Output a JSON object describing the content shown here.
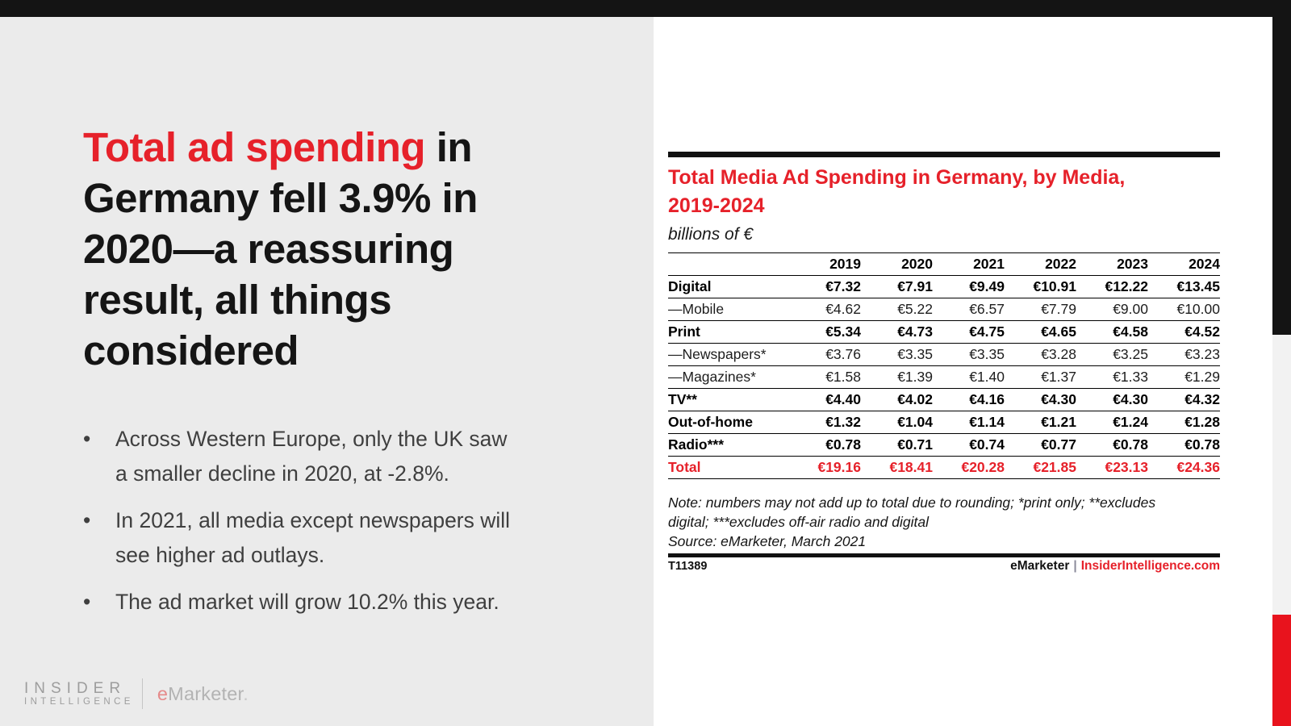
{
  "colors": {
    "accent_red": "#e6212a",
    "strip_red": "#e8131d",
    "topbar_black": "#141414",
    "panel_gray": "#ebebeb",
    "strip_gray": "#f2f2f2",
    "bullet_gray": "#3f3f3f",
    "logo_gray": "#9d9d9d",
    "logo_light_gray": "#b3b3b3",
    "logo_red": "#e58a8a"
  },
  "left_panel": {
    "headline": {
      "highlight": "Total ad spending",
      "rest": " in\nGermany fell 3.9% in\n2020—a reassuring\nresult, all things\nconsidered"
    },
    "bullets": [
      "Across Western Europe, only the UK saw\na smaller decline in 2020, at -2.8%.",
      "In 2021, all media except newspapers will\nsee higher ad outlays.",
      "The ad market will grow 10.2% this year."
    ],
    "logo": {
      "insider_line1": "INSIDER",
      "insider_line2": "INTELLIGENCE",
      "emarketer_e": "e",
      "emarketer_rest": "Marketer",
      "emarketer_dot": "."
    }
  },
  "chart_card": {
    "title_line1": "Total Media Ad Spending in Germany, by Media,",
    "title_line2": "2019-2024",
    "subtitle": "billions of €",
    "note_line1": "Note: numbers may not add up to total due to rounding; *print only; **excludes",
    "note_line2": "digital; ***excludes off-air radio and digital",
    "source": "Source: eMarketer, March 2021",
    "chart_id": "T11389",
    "footer_brand": "eMarketer",
    "footer_separator": "|",
    "footer_site": "InsiderIntelligence.com"
  },
  "chart_data": {
    "type": "table",
    "title": "Total Media Ad Spending in Germany, by Media, 2019-2024",
    "unit": "billions of €",
    "currency_prefix": "€",
    "categories": [
      "2019",
      "2020",
      "2021",
      "2022",
      "2023",
      "2024"
    ],
    "series": [
      {
        "name": "Digital",
        "style": "bold",
        "values": [
          7.32,
          7.91,
          9.49,
          10.91,
          12.22,
          13.45
        ]
      },
      {
        "name": "—Mobile",
        "style": "sub",
        "values": [
          4.62,
          5.22,
          6.57,
          7.79,
          9.0,
          10.0
        ]
      },
      {
        "name": "Print",
        "style": "bold",
        "values": [
          5.34,
          4.73,
          4.75,
          4.65,
          4.58,
          4.52
        ]
      },
      {
        "name": "—Newspapers*",
        "style": "sub",
        "values": [
          3.76,
          3.35,
          3.35,
          3.28,
          3.25,
          3.23
        ]
      },
      {
        "name": "—Magazines*",
        "style": "sub",
        "values": [
          1.58,
          1.39,
          1.4,
          1.37,
          1.33,
          1.29
        ]
      },
      {
        "name": "TV**",
        "style": "bold",
        "values": [
          4.4,
          4.02,
          4.16,
          4.3,
          4.3,
          4.32
        ]
      },
      {
        "name": "Out-of-home",
        "style": "bold",
        "values": [
          1.32,
          1.04,
          1.14,
          1.21,
          1.24,
          1.28
        ]
      },
      {
        "name": "Radio***",
        "style": "bold",
        "values": [
          0.78,
          0.71,
          0.74,
          0.77,
          0.78,
          0.78
        ]
      },
      {
        "name": "Total",
        "style": "total",
        "values": [
          19.16,
          18.41,
          20.28,
          21.85,
          23.13,
          24.36
        ]
      }
    ]
  }
}
